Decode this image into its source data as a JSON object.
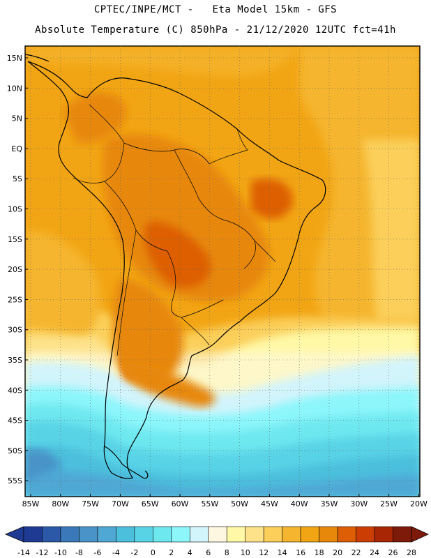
{
  "header": {
    "title_line1": "CPTEC/INPE/MCT -   Eta Model 15km - GFS",
    "title_line2": "Absolute Temperature (C) 850hPa - 21/12/2020 12UTC fct=41h"
  },
  "map": {
    "lat_labels": [
      "15N",
      "10N",
      "5N",
      "EQ",
      "5S",
      "10S",
      "15S",
      "20S",
      "25S",
      "30S",
      "35S",
      "40S",
      "45S",
      "50S",
      "55S"
    ],
    "lon_labels": [
      "85W",
      "80W",
      "75W",
      "70W",
      "65W",
      "60W",
      "55W",
      "50W",
      "45W",
      "40W",
      "35W",
      "30W",
      "25W",
      "20W"
    ]
  },
  "legend": {
    "labels": [
      "-14",
      "-12",
      "-10",
      "-8",
      "-6",
      "-4",
      "-2",
      "0",
      "2",
      "4",
      "6",
      "8",
      "10",
      "12",
      "14",
      "16",
      "18",
      "20",
      "22",
      "24",
      "26",
      "28"
    ],
    "colors": [
      "#1f3a93",
      "#2b58a7",
      "#3a78b9",
      "#4a93c8",
      "#4fa7d4",
      "#4cbfdd",
      "#58d3e6",
      "#6ee8ef",
      "#8cf6fb",
      "#d2f4fb",
      "#fdf7e1",
      "#fff8a6",
      "#fde28a",
      "#fbcf5a",
      "#f5b52e",
      "#f2a514",
      "#e7880a",
      "#dd5e05",
      "#cc3d04",
      "#a92604",
      "#7d1a0a"
    ]
  }
}
